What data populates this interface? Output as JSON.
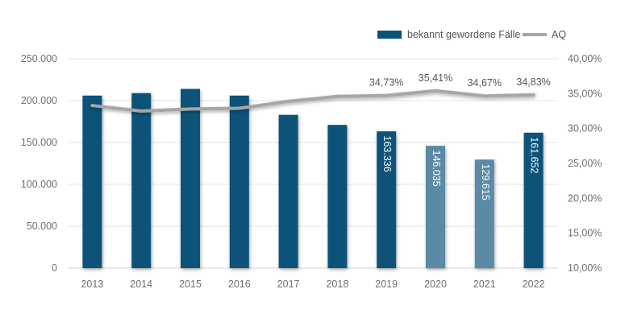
{
  "chart_data": {
    "type": "bar",
    "categories": [
      "2013",
      "2014",
      "2015",
      "2016",
      "2017",
      "2018",
      "2019",
      "2020",
      "2021",
      "2022"
    ],
    "series": [
      {
        "name": "bekannt gewordene Fälle",
        "type": "bar",
        "axis": "left",
        "color": "#0b5279",
        "faded_color": "#5a8aa5",
        "faded_categories": [
          "2020",
          "2021"
        ],
        "values": [
          206000,
          209000,
          214000,
          206000,
          183000,
          171000,
          163336,
          146035,
          129615,
          161652
        ],
        "data_labels": [
          null,
          null,
          null,
          null,
          null,
          null,
          "163.336",
          "146.035",
          "129.615",
          "161.652"
        ]
      },
      {
        "name": "AQ",
        "type": "line",
        "axis": "right",
        "color": "#a6a6a6",
        "values": [
          33.3,
          32.5,
          32.8,
          32.9,
          33.9,
          34.6,
          34.73,
          35.41,
          34.67,
          34.83
        ],
        "data_labels": [
          null,
          null,
          null,
          null,
          null,
          null,
          "34,73%",
          "35,41%",
          "34,67%",
          "34,83%"
        ]
      }
    ],
    "y_left": {
      "ylim": [
        0,
        250000
      ],
      "ticks": [
        0,
        50000,
        100000,
        150000,
        200000,
        250000
      ],
      "tick_labels": [
        "0",
        "50.000",
        "100.000",
        "150.000",
        "200.000",
        "250.000"
      ]
    },
    "y_right": {
      "ylim": [
        10,
        40
      ],
      "ticks": [
        10,
        15,
        20,
        25,
        30,
        35,
        40
      ],
      "tick_labels": [
        "10,00%",
        "15,00%",
        "20,00%",
        "25,00%",
        "30,00%",
        "35,00%",
        "40,00%"
      ]
    },
    "grid": true,
    "legend_position": "top-right",
    "title": "",
    "xlabel": "",
    "ylabel": ""
  }
}
